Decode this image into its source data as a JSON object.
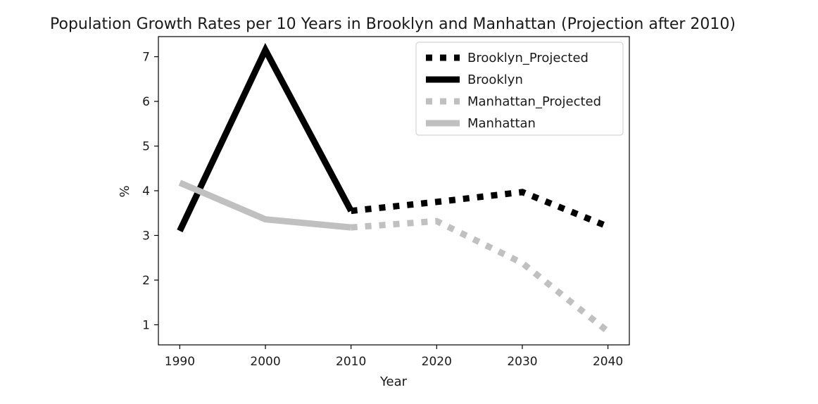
{
  "chart_data": {
    "type": "line",
    "title": "Population Growth Rates per 10 Years in Brooklyn and Manhattan (Projection after 2010)",
    "xlabel": "Year",
    "ylabel": "%",
    "xlim": [
      1987.5,
      2042.5
    ],
    "ylim": [
      0.55,
      7.45
    ],
    "xticks": [
      1990,
      2000,
      2010,
      2020,
      2030,
      2040
    ],
    "yticks": [
      1,
      2,
      3,
      4,
      5,
      6,
      7
    ],
    "grid": false,
    "legend_position": "top-right",
    "series": [
      {
        "name": "Brooklyn_Projected",
        "color": "#000000",
        "style": "dotted",
        "x": [
          2010,
          2020,
          2030,
          2040
        ],
        "y": [
          3.55,
          3.75,
          3.97,
          3.2
        ]
      },
      {
        "name": "Brooklyn",
        "color": "#000000",
        "style": "solid",
        "x": [
          1990,
          2000,
          2010
        ],
        "y": [
          3.1,
          7.15,
          3.55
        ]
      },
      {
        "name": "Manhattan_Projected",
        "color": "#c0c0c0",
        "style": "dotted",
        "x": [
          2010,
          2020,
          2030,
          2040
        ],
        "y": [
          3.18,
          3.32,
          2.38,
          0.85
        ]
      },
      {
        "name": "Manhattan",
        "color": "#c0c0c0",
        "style": "solid",
        "x": [
          1990,
          2000,
          2010
        ],
        "y": [
          4.18,
          3.36,
          3.18
        ]
      }
    ]
  }
}
